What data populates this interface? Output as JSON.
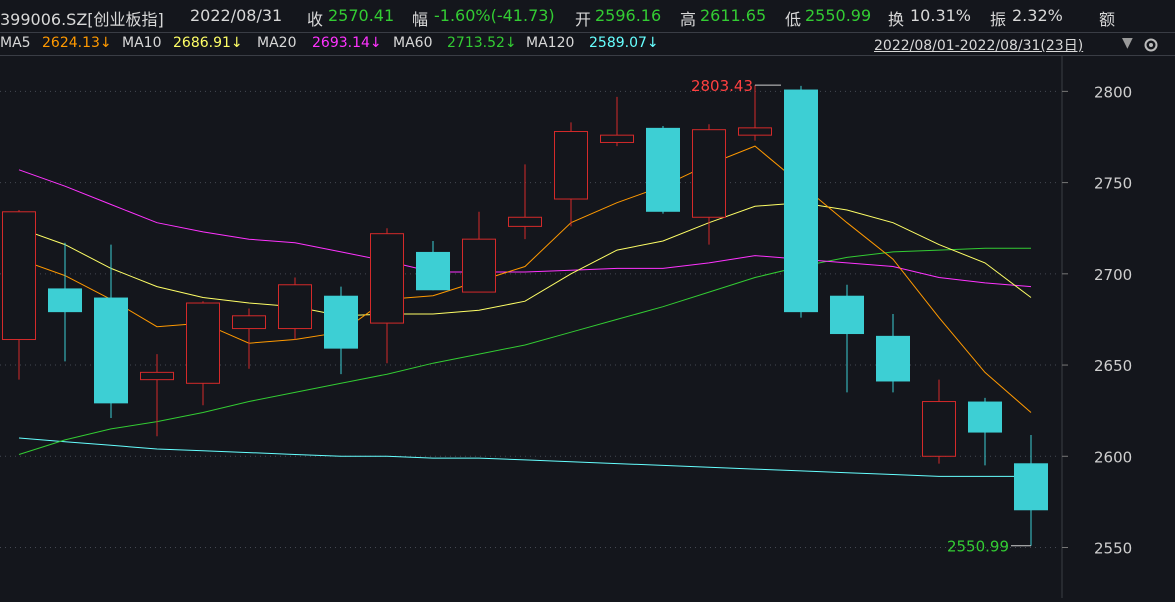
{
  "header": {
    "code": "399006.SZ[创业板指]",
    "date": "2022/08/31",
    "close_label": "收",
    "close": "2570.41",
    "change_label": "幅",
    "change": "-1.60%(-41.73)",
    "open_label": "开",
    "open": "2596.16",
    "high_label": "高",
    "high": "2611.65",
    "low_label": "低",
    "low": "2550.99",
    "turnover_label": "换",
    "turnover": "10.31%",
    "amplitude_label": "振",
    "amplitude": "2.32%",
    "amount_label": "额"
  },
  "ma_bar": {
    "ma5_label": "MA5",
    "ma5": "2624.13↓",
    "ma10_label": "MA10",
    "ma10": "2686.91↓",
    "ma20_label": "MA20",
    "ma20": "2693.14↓",
    "ma60_label": "MA60",
    "ma60": "2713.52↓",
    "ma120_label": "MA120",
    "ma120": "2589.07↓",
    "date_range": "2022/08/01-2022/08/31(23日)"
  },
  "colors": {
    "background": "#14161c",
    "up": "#ff3333",
    "down": "#3dcfd4",
    "ma5": "#ff9900",
    "ma10": "#ffff66",
    "ma20": "#ff33ff",
    "ma60": "#33cc33",
    "ma120": "#66ffff"
  },
  "chart_data": {
    "type": "candlestick",
    "ylim": [
      2530,
      2815
    ],
    "yticks": [
      2550,
      2600,
      2650,
      2700,
      2750,
      2800
    ],
    "grid": true,
    "candles": [
      {
        "o": 2664,
        "c": 2734,
        "h": 2735,
        "l": 2642
      },
      {
        "o": 2692,
        "c": 2679,
        "h": 2717,
        "l": 2652
      },
      {
        "o": 2687,
        "c": 2629,
        "h": 2716,
        "l": 2621
      },
      {
        "o": 2642,
        "c": 2646,
        "h": 2656,
        "l": 2611
      },
      {
        "o": 2640,
        "c": 2684,
        "h": 2685,
        "l": 2628
      },
      {
        "o": 2670,
        "c": 2677,
        "h": 2681,
        "l": 2648
      },
      {
        "o": 2670,
        "c": 2694,
        "h": 2698,
        "l": 2664
      },
      {
        "o": 2688,
        "c": 2659,
        "h": 2693,
        "l": 2645
      },
      {
        "o": 2673,
        "c": 2722,
        "h": 2725,
        "l": 2651
      },
      {
        "o": 2712,
        "c": 2691,
        "h": 2718,
        "l": 2691
      },
      {
        "o": 2690,
        "c": 2719,
        "h": 2734,
        "l": 2690
      },
      {
        "o": 2726,
        "c": 2731,
        "h": 2760,
        "l": 2719
      },
      {
        "o": 2741,
        "c": 2778,
        "h": 2783,
        "l": 2726
      },
      {
        "o": 2772,
        "c": 2776,
        "h": 2797,
        "l": 2770
      },
      {
        "o": 2780,
        "c": 2734,
        "h": 2781,
        "l": 2733
      },
      {
        "o": 2731,
        "c": 2779,
        "h": 2782,
        "l": 2716
      },
      {
        "o": 2776,
        "c": 2780,
        "h": 2803.43,
        "l": 2773
      },
      {
        "o": 2801,
        "c": 2679,
        "h": 2803,
        "l": 2676
      },
      {
        "o": 2688,
        "c": 2667,
        "h": 2694,
        "l": 2635
      },
      {
        "o": 2666,
        "c": 2641,
        "h": 2678,
        "l": 2635
      },
      {
        "o": 2600,
        "c": 2630,
        "h": 2642,
        "l": 2596
      },
      {
        "o": 2630,
        "c": 2613,
        "h": 2632,
        "l": 2595
      },
      {
        "o": 2596.16,
        "c": 2570.41,
        "h": 2611.65,
        "l": 2550.99
      }
    ],
    "ma5": [
      2708,
      2699,
      2686,
      2671,
      2673,
      2662,
      2664,
      2668,
      2686,
      2688,
      2696,
      2704,
      2728,
      2739,
      2748,
      2760,
      2770,
      2749,
      2728,
      2708,
      2676,
      2646,
      2624
    ],
    "ma10": [
      2725,
      2716,
      2703,
      2693,
      2687,
      2684,
      2682,
      2677,
      2678,
      2678,
      2680,
      2685,
      2700,
      2713,
      2718,
      2728,
      2737,
      2739,
      2735,
      2728,
      2716,
      2706,
      2687
    ],
    "ma20": [
      2757,
      2748,
      2738,
      2728,
      2723,
      2719,
      2717,
      2712,
      2707,
      2701,
      2701,
      2701,
      2702,
      2703,
      2703,
      2706,
      2710,
      2708,
      2706,
      2704,
      2698,
      2695,
      2693
    ],
    "ma60": [
      2601,
      2609,
      2615,
      2619,
      2624,
      2630,
      2635,
      2640,
      2645,
      2651,
      2656,
      2661,
      2668,
      2675,
      2682,
      2690,
      2698,
      2704,
      2709,
      2712,
      2713,
      2714,
      2714
    ],
    "ma120": [
      2610,
      2608,
      2606,
      2604,
      2603,
      2602,
      2601,
      2600,
      2600,
      2599,
      2599,
      2598,
      2597,
      2596,
      2595,
      2594,
      2593,
      2592,
      2591,
      2590,
      2589,
      2589,
      2589
    ],
    "annotations": {
      "max_label": "2803.43",
      "min_label": "2550.99"
    }
  }
}
